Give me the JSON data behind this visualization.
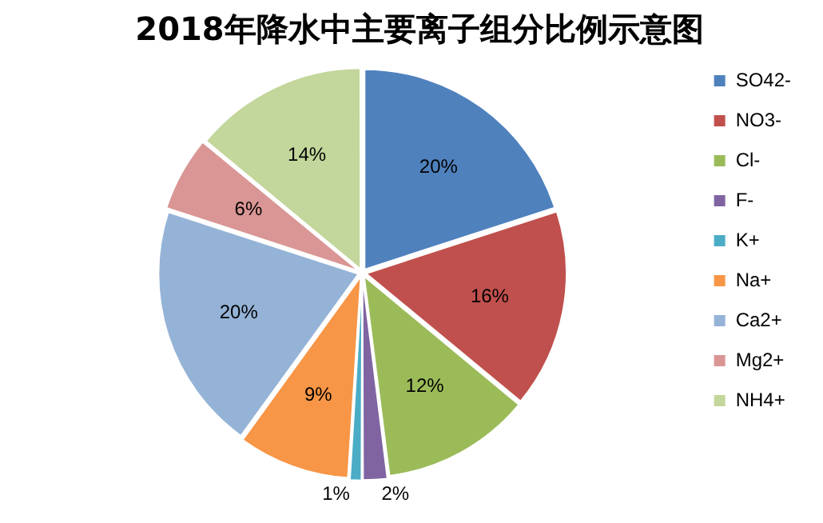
{
  "chart_data": {
    "type": "pie",
    "title": "2018年降水中主要离子组分比例示意图",
    "categories": [
      "SO42-",
      "NO3-",
      "Cl-",
      "F-",
      "K+",
      "Na+",
      "Ca2+",
      "Mg2+",
      "NH4+"
    ],
    "values": [
      20,
      16,
      12,
      2,
      1,
      9,
      20,
      6,
      14
    ],
    "colors": [
      "#4f81bd",
      "#c0504d",
      "#9bbb59",
      "#8064a2",
      "#4bacc6",
      "#f79646",
      "#95b3d7",
      "#d99694",
      "#c3d69b"
    ],
    "value_labels": [
      "20%",
      "16%",
      "12%",
      "2%",
      "1%",
      "9%",
      "20%",
      "6%",
      "14%"
    ],
    "legend": "right"
  }
}
